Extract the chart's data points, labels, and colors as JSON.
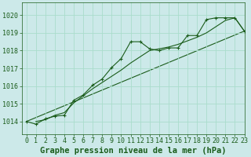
{
  "xlabel": "Graphe pression niveau de la mer (hPa)",
  "ylim": [
    1013.3,
    1020.7
  ],
  "xlim": [
    -0.5,
    23
  ],
  "yticks": [
    1014,
    1015,
    1016,
    1017,
    1018,
    1019,
    1020
  ],
  "xticks": [
    0,
    1,
    2,
    3,
    4,
    5,
    6,
    7,
    8,
    9,
    10,
    11,
    12,
    13,
    14,
    15,
    16,
    17,
    18,
    19,
    20,
    21,
    22,
    23
  ],
  "bg_color": "#cce9e9",
  "grid_color": "#aaddcc",
  "line_color": "#1a5c1a",
  "marker": "+",
  "series1_x": [
    0,
    1,
    2,
    3,
    4,
    5,
    6,
    7,
    8,
    9,
    10,
    11,
    12,
    13,
    14,
    15,
    16,
    17,
    18,
    19,
    20,
    21,
    22,
    23
  ],
  "series1_y": [
    1014.0,
    1013.85,
    1014.15,
    1014.3,
    1014.35,
    1015.2,
    1015.5,
    1016.05,
    1016.4,
    1017.05,
    1017.55,
    1018.5,
    1018.5,
    1018.1,
    1018.0,
    1018.15,
    1018.15,
    1018.85,
    1018.85,
    1019.75,
    1019.85,
    1019.85,
    1019.85,
    1019.1
  ],
  "series2_x": [
    1,
    2,
    3,
    4,
    5,
    6,
    7,
    8,
    9,
    10,
    11,
    12,
    13,
    14,
    15,
    16,
    17,
    18,
    19,
    20,
    21,
    22,
    23
  ],
  "series2_y": [
    1014.0,
    1014.1,
    1014.35,
    1014.5,
    1015.05,
    1015.45,
    1015.85,
    1016.2,
    1016.55,
    1016.9,
    1017.3,
    1017.65,
    1018.0,
    1018.1,
    1018.2,
    1018.35,
    1018.55,
    1018.75,
    1019.0,
    1019.35,
    1019.7,
    1019.85,
    1019.1
  ],
  "series3_x": [
    0,
    23
  ],
  "series3_y": [
    1014.0,
    1019.1
  ],
  "text_color": "#1a5c1a",
  "font_size_label": 7.5,
  "font_size_tick": 6
}
